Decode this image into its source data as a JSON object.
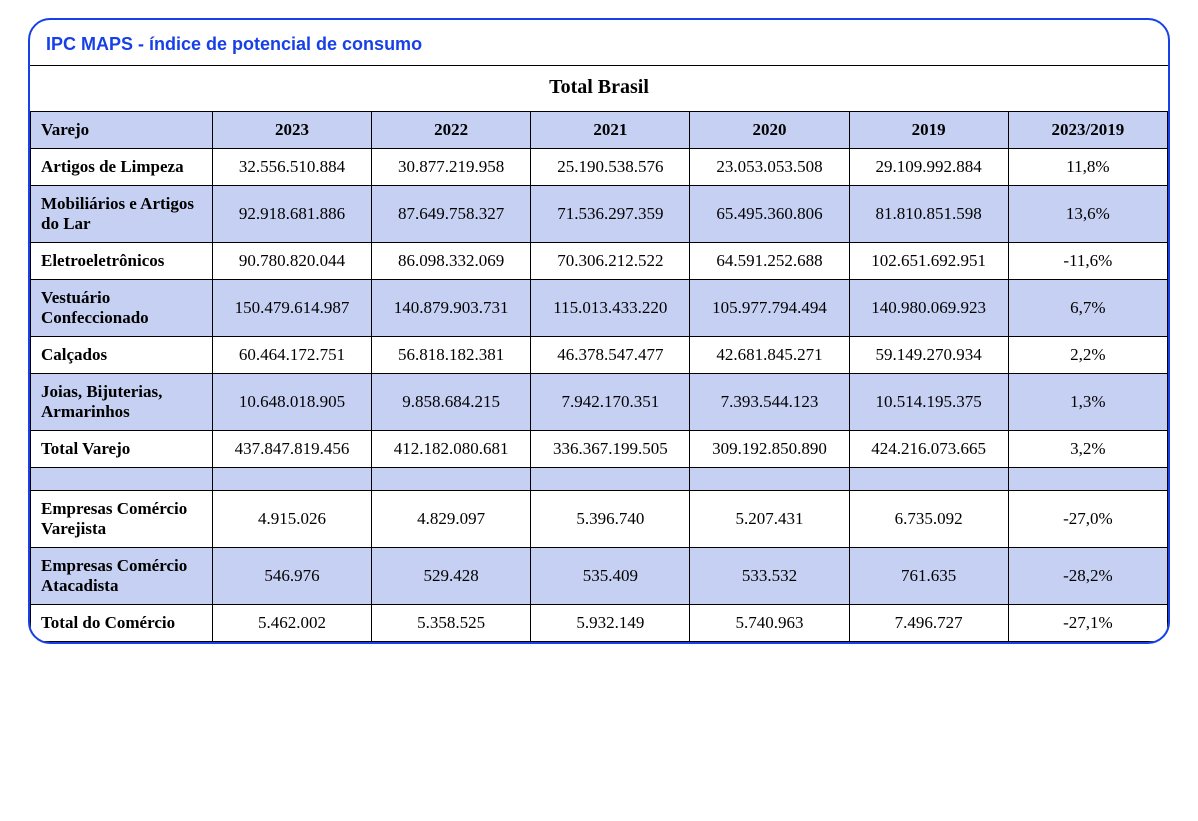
{
  "panel": {
    "title": "IPC MAPS - índice de potencial de consumo",
    "region_title": "Total Brasil"
  },
  "colors": {
    "border": "#1740e6",
    "title_text": "#1740e6",
    "header_bg": "#c6d0f2",
    "tint_bg": "#c6d0f2",
    "cell_border": "#000000",
    "text": "#000000",
    "background": "#ffffff"
  },
  "typography": {
    "title_font": "Arial",
    "title_size_pt": 14,
    "body_font": "Georgia",
    "body_size_pt": 13,
    "header_weight": "bold"
  },
  "table": {
    "row_header": "Varejo",
    "columns": [
      "2023",
      "2022",
      "2021",
      "2020",
      "2019",
      "2023/2019"
    ],
    "column_align": "center",
    "label_align": "left",
    "rows": [
      {
        "label": "Artigos de Limpeza",
        "tint": false,
        "values": [
          "32.556.510.884",
          "30.877.219.958",
          "25.190.538.576",
          "23.053.053.508",
          "29.109.992.884",
          "11,8%"
        ]
      },
      {
        "label": "Mobiliários e Artigos do Lar",
        "tint": true,
        "values": [
          "92.918.681.886",
          "87.649.758.327",
          "71.536.297.359",
          "65.495.360.806",
          "81.810.851.598",
          "13,6%"
        ]
      },
      {
        "label": "Eletroeletrônicos",
        "tint": false,
        "values": [
          "90.780.820.044",
          "86.098.332.069",
          "70.306.212.522",
          "64.591.252.688",
          "102.651.692.951",
          "-11,6%"
        ]
      },
      {
        "label": "Vestuário Confeccionado",
        "tint": true,
        "values": [
          "150.479.614.987",
          "140.879.903.731",
          "115.013.433.220",
          "105.977.794.494",
          "140.980.069.923",
          "6,7%"
        ]
      },
      {
        "label": "Calçados",
        "tint": false,
        "values": [
          "60.464.172.751",
          "56.818.182.381",
          "46.378.547.477",
          "42.681.845.271",
          "59.149.270.934",
          "2,2%"
        ]
      },
      {
        "label": "Joias, Bijuterias, Armarinhos",
        "tint": true,
        "values": [
          "10.648.018.905",
          "9.858.684.215",
          "7.942.170.351",
          "7.393.544.123",
          "10.514.195.375",
          "1,3%"
        ]
      },
      {
        "label": "Total Varejo",
        "tint": false,
        "values": [
          "437.847.819.456",
          "412.182.080.681",
          "336.367.199.505",
          "309.192.850.890",
          "424.216.073.665",
          "3,2%"
        ]
      },
      {
        "spacer": true
      },
      {
        "label": "Empresas Comércio Varejista",
        "tint": false,
        "values": [
          "4.915.026",
          "4.829.097",
          "5.396.740",
          "5.207.431",
          "6.735.092",
          "-27,0%"
        ]
      },
      {
        "label": "Empresas Comércio Atacadista",
        "tint": true,
        "values": [
          "546.976",
          "529.428",
          "535.409",
          "533.532",
          "761.635",
          "-28,2%"
        ]
      },
      {
        "label": "Total do Comércio",
        "tint": false,
        "values": [
          "5.462.002",
          "5.358.525",
          "5.932.149",
          "5.740.963",
          "7.496.727",
          "-27,1%"
        ]
      }
    ]
  }
}
